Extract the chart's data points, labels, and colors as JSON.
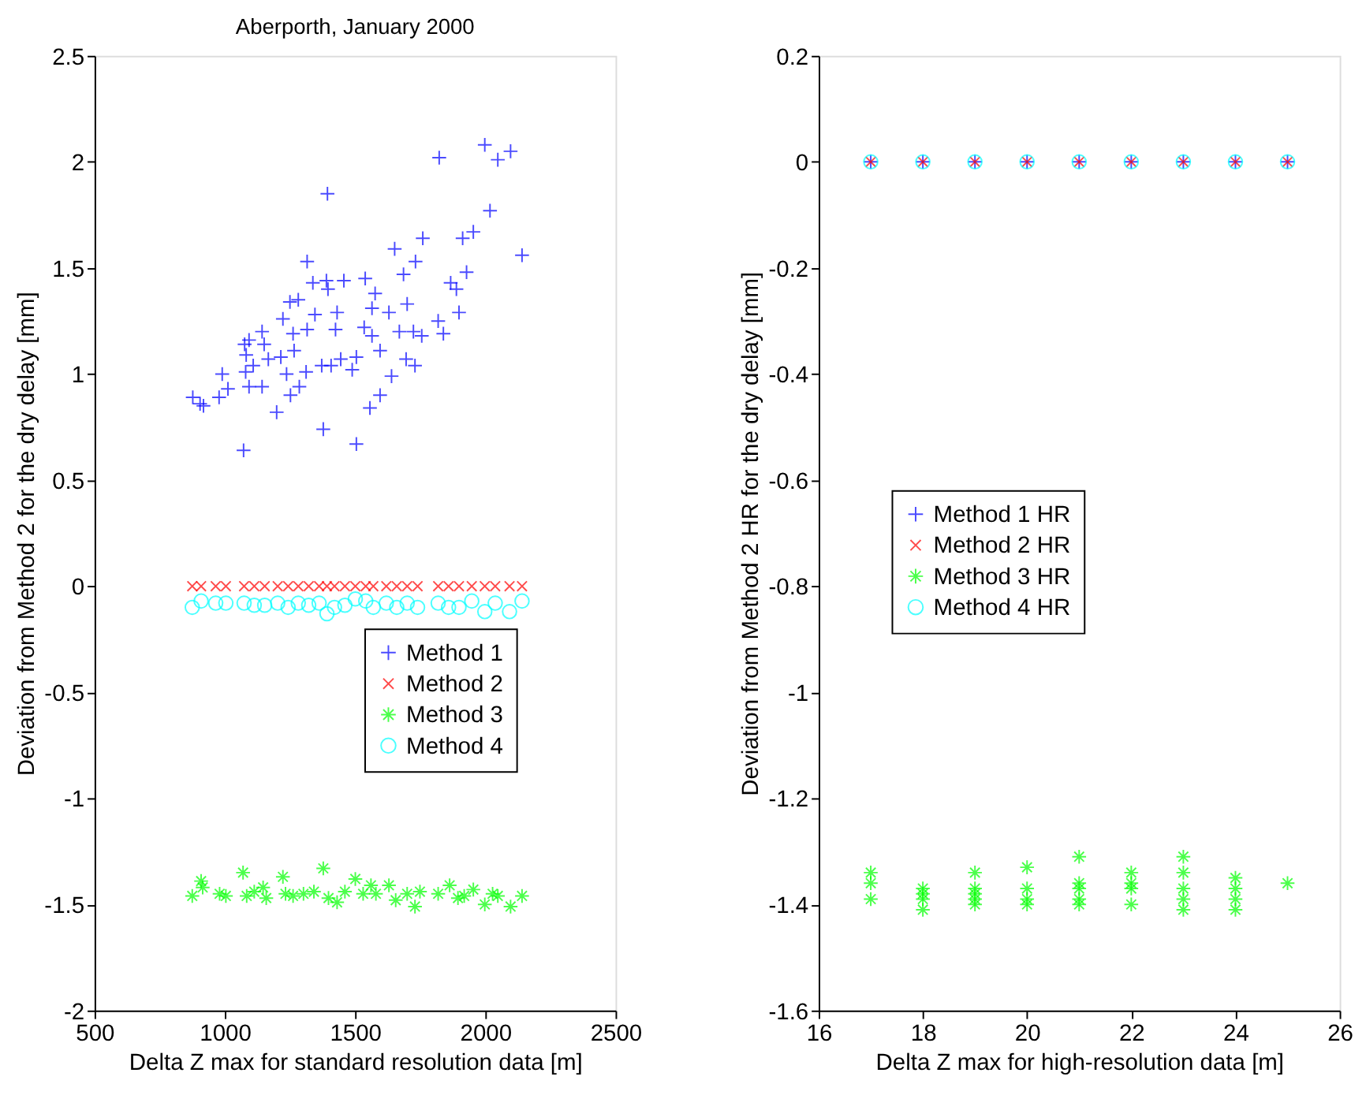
{
  "chart_data": [
    {
      "type": "scatter",
      "title": "Aberporth, January 2000",
      "xlabel": "Delta Z max for standard resolution data [m]",
      "ylabel": "Deviation from Method 2 for the dry delay [mm]",
      "xlim": [
        500,
        2500
      ],
      "xticks": [
        500,
        1000,
        1500,
        2000,
        2500
      ],
      "ylim": [
        -2,
        2.5
      ],
      "yticks": [
        -2,
        -1.5,
        -1,
        -0.5,
        0,
        0.5,
        1,
        1.5,
        2,
        2.5
      ],
      "legend": "right",
      "series": [
        {
          "name": "Method 1",
          "color": "#0000ff",
          "marker": "plus",
          "x": [
            877,
            905,
            918,
            978,
            990,
            1012,
            1072,
            1076,
            1093,
            1082,
            1080,
            1093,
            1109,
            1143,
            1151,
            1143,
            1167,
            1199,
            1215,
            1223,
            1237,
            1250,
            1262,
            1266,
            1252,
            1282,
            1286,
            1312,
            1316,
            1316,
            1338,
            1346,
            1378,
            1372,
            1390,
            1394,
            1396,
            1408,
            1425,
            1431,
            1445,
            1457,
            1489,
            1505,
            1505,
            1535,
            1539,
            1557,
            1565,
            1565,
            1577,
            1596,
            1596,
            1630,
            1640,
            1652,
            1670,
            1686,
            1700,
            1696,
            1724,
            1732,
            1730,
            1756,
            1760,
            1819,
            1823,
            1839,
            1867,
            1889,
            1899,
            1913,
            1928,
            1954,
            1998,
            2018,
            2048,
            2097,
            2141
          ],
          "values": [
            0.89,
            0.86,
            0.85,
            0.89,
            1.0,
            0.93,
            0.64,
            1.14,
            1.16,
            1.09,
            1.01,
            0.94,
            1.04,
            1.2,
            1.14,
            0.94,
            1.07,
            0.82,
            1.08,
            1.26,
            1.0,
            1.34,
            1.19,
            1.11,
            0.9,
            1.35,
            0.94,
            1.01,
            1.21,
            1.53,
            1.43,
            1.28,
            0.74,
            1.04,
            1.44,
            1.85,
            1.4,
            1.04,
            1.21,
            1.29,
            1.07,
            1.44,
            1.02,
            1.08,
            0.67,
            1.22,
            1.45,
            0.84,
            1.18,
            1.31,
            1.38,
            1.11,
            0.9,
            1.29,
            0.99,
            1.59,
            1.2,
            1.47,
            1.33,
            1.07,
            1.2,
            1.53,
            1.04,
            1.18,
            1.64,
            1.25,
            2.02,
            1.19,
            1.43,
            1.4,
            1.29,
            1.64,
            1.48,
            1.67,
            2.08,
            1.77,
            2.01,
            2.05,
            1.56
          ]
        },
        {
          "name": "Method 2",
          "color": "#ff0000",
          "marker": "x",
          "x": [
            875,
            909,
            965,
            1004,
            1074,
            1113,
            1153,
            1203,
            1243,
            1282,
            1322,
            1362,
            1392,
            1421,
            1461,
            1501,
            1541,
            1570,
            1620,
            1660,
            1700,
            1740,
            1819,
            1859,
            1899,
            1948,
            1998,
            2038,
            2093,
            2141
          ],
          "values": [
            0,
            0,
            0,
            0,
            0,
            0,
            0,
            0,
            0,
            0,
            0,
            0,
            0,
            0,
            0,
            0,
            0,
            0,
            0,
            0,
            0,
            0,
            0,
            0,
            0,
            0,
            0,
            0,
            0,
            0
          ]
        },
        {
          "name": "Method 3",
          "color": "#00ff00",
          "marker": "cross",
          "x": [
            875,
            909,
            915,
            980,
            1004,
            1070,
            1084,
            1113,
            1147,
            1159,
            1223,
            1233,
            1262,
            1302,
            1342,
            1378,
            1398,
            1431,
            1461,
            1501,
            1531,
            1561,
            1580,
            1630,
            1656,
            1700,
            1730,
            1749,
            1819,
            1863,
            1895,
            1919,
            1954,
            1998,
            2028,
            2048,
            2097,
            2141
          ],
          "values": [
            -1.46,
            -1.39,
            -1.42,
            -1.45,
            -1.46,
            -1.35,
            -1.46,
            -1.44,
            -1.42,
            -1.47,
            -1.37,
            -1.45,
            -1.46,
            -1.45,
            -1.44,
            -1.33,
            -1.47,
            -1.49,
            -1.44,
            -1.38,
            -1.45,
            -1.41,
            -1.45,
            -1.41,
            -1.48,
            -1.45,
            -1.51,
            -1.44,
            -1.45,
            -1.41,
            -1.47,
            -1.46,
            -1.43,
            -1.5,
            -1.45,
            -1.46,
            -1.51,
            -1.46
          ]
        },
        {
          "name": "Method 4",
          "color": "#00ffff",
          "marker": "circle",
          "x": [
            875,
            909,
            965,
            1004,
            1074,
            1113,
            1153,
            1203,
            1243,
            1282,
            1322,
            1362,
            1392,
            1421,
            1461,
            1501,
            1541,
            1570,
            1620,
            1660,
            1700,
            1740,
            1819,
            1859,
            1899,
            1948,
            1998,
            2038,
            2093,
            2141
          ],
          "values": [
            -0.1,
            -0.07,
            -0.08,
            -0.08,
            -0.08,
            -0.09,
            -0.09,
            -0.08,
            -0.1,
            -0.08,
            -0.09,
            -0.08,
            -0.13,
            -0.1,
            -0.09,
            -0.06,
            -0.07,
            -0.1,
            -0.08,
            -0.1,
            -0.08,
            -0.1,
            -0.08,
            -0.1,
            -0.1,
            -0.07,
            -0.12,
            -0.08,
            -0.12,
            -0.07
          ]
        }
      ]
    },
    {
      "type": "scatter",
      "xlabel": "Delta Z max for high-resolution data [m]",
      "ylabel": "Deviation from Method 2 HR for the dry delay [mm]",
      "xlim": [
        16,
        26
      ],
      "xticks": [
        16,
        18,
        20,
        22,
        24,
        26
      ],
      "ylim": [
        -1.6,
        0.2
      ],
      "yticks": [
        -1.6,
        -1.4,
        -1.2,
        -1,
        -0.8,
        -0.6,
        -0.4,
        -0.2,
        0,
        0.2
      ],
      "legend": "center",
      "series": [
        {
          "name": "Method 1 HR",
          "color": "#0000ff",
          "marker": "plus",
          "x": [
            17,
            18,
            19,
            20,
            21,
            22,
            23,
            24,
            25
          ],
          "values": [
            0,
            0,
            0,
            0,
            0,
            0,
            0,
            0,
            0
          ]
        },
        {
          "name": "Method 2 HR",
          "color": "#ff0000",
          "marker": "x",
          "x": [
            17,
            18,
            19,
            20,
            21,
            22,
            23,
            24,
            25
          ],
          "values": [
            0,
            0,
            0,
            0,
            0,
            0,
            0,
            0,
            0
          ]
        },
        {
          "name": "Method 3 HR",
          "color": "#00ff00",
          "marker": "cross",
          "x": [
            17,
            17,
            17,
            18,
            18,
            18,
            18,
            19,
            19,
            19,
            19,
            19,
            20,
            20,
            20,
            20,
            21,
            21,
            21,
            21,
            21,
            22,
            22,
            22,
            22,
            23,
            23,
            23,
            23,
            23,
            24,
            24,
            24,
            24,
            25
          ],
          "values": [
            -1.34,
            -1.36,
            -1.39,
            -1.37,
            -1.38,
            -1.39,
            -1.41,
            -1.34,
            -1.37,
            -1.38,
            -1.39,
            -1.4,
            -1.33,
            -1.37,
            -1.39,
            -1.4,
            -1.31,
            -1.36,
            -1.37,
            -1.39,
            -1.4,
            -1.34,
            -1.36,
            -1.37,
            -1.4,
            -1.31,
            -1.34,
            -1.37,
            -1.39,
            -1.41,
            -1.35,
            -1.37,
            -1.39,
            -1.41,
            -1.36
          ]
        },
        {
          "name": "Method 4 HR",
          "color": "#00ffff",
          "marker": "circle",
          "x": [
            17,
            18,
            19,
            20,
            21,
            22,
            23,
            24,
            25
          ],
          "values": [
            0,
            0,
            0,
            0,
            0,
            0,
            0,
            0,
            0
          ]
        }
      ]
    }
  ]
}
